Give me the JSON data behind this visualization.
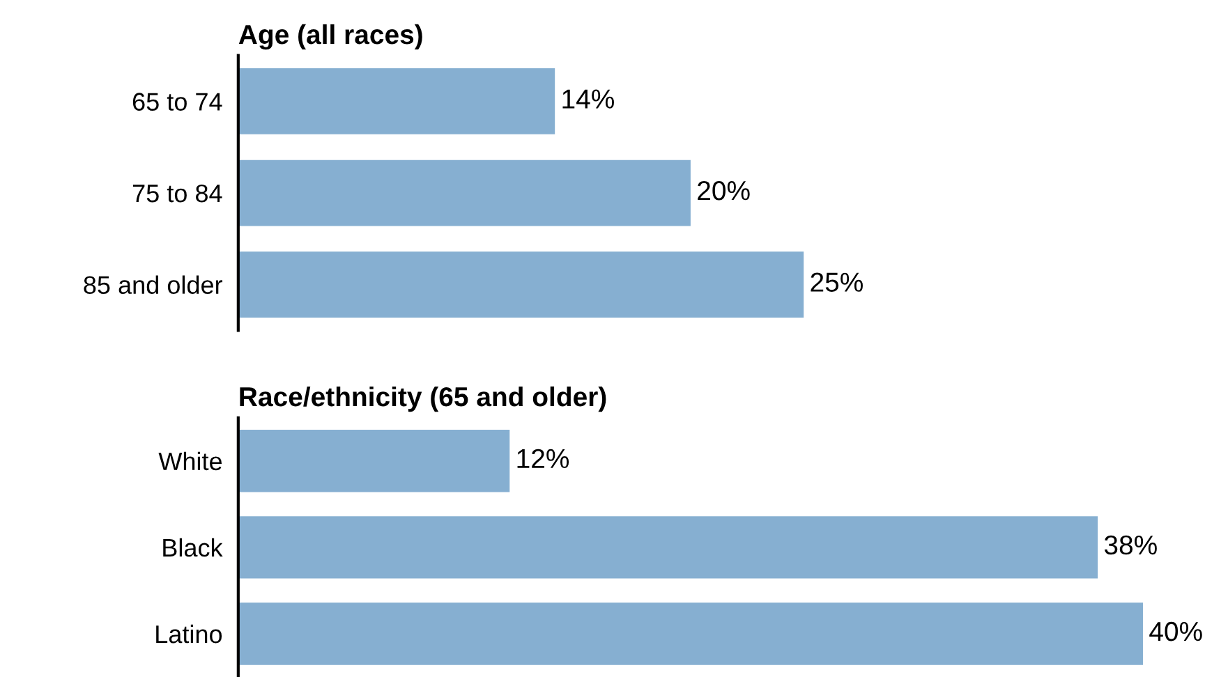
{
  "chart_data": [
    {
      "type": "bar",
      "orientation": "horizontal",
      "title": "Age (all races)",
      "categories": [
        "65 to 74",
        "75 to 84",
        "85 and older"
      ],
      "values": [
        14,
        20,
        25
      ],
      "color": "#86afd1",
      "value_labels": [
        "14%",
        "20%",
        "25%"
      ],
      "tick_labels": "y",
      "grid": false,
      "legend": false
    },
    {
      "type": "bar",
      "orientation": "horizontal",
      "title": "Race/ethnicity (65 and older)",
      "categories": [
        "White",
        "Black",
        "Latino"
      ],
      "values": [
        12,
        38,
        40
      ],
      "color": "#86afd1",
      "value_labels": [
        "12%",
        "38%",
        "40%"
      ],
      "tick_labels": "y",
      "grid": false,
      "legend": false
    }
  ]
}
